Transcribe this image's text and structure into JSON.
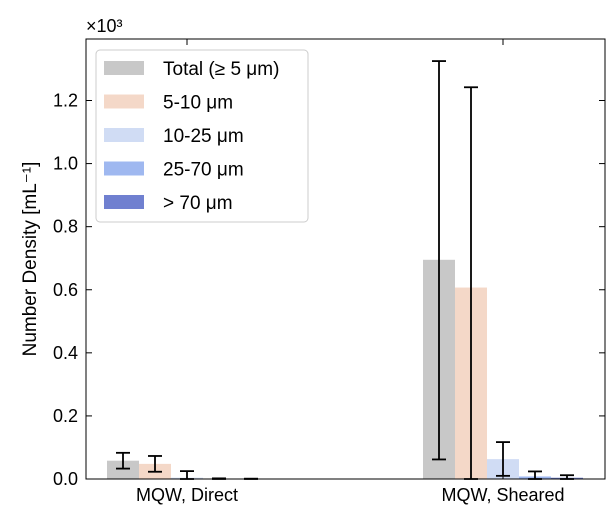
{
  "chart_data": {
    "type": "bar",
    "categories": [
      "MQW, Direct",
      "MQW, Sheared"
    ],
    "series": [
      {
        "name": "Total (≥ 5 μm)",
        "color": "#c8c8c8",
        "values": [
          0.058,
          0.695
        ],
        "err_low": [
          0.033,
          0.062
        ],
        "err_high": [
          0.083,
          1.325
        ]
      },
      {
        "name": "5-10 μm",
        "color": "#f4d8c8",
        "values": [
          0.048,
          0.607
        ],
        "err_low": [
          0.023,
          0.0
        ],
        "err_high": [
          0.073,
          1.242
        ]
      },
      {
        "name": "10-25 μm",
        "color": "#d0dcf4",
        "values": [
          0.004,
          0.063
        ],
        "err_low": [
          0.0,
          0.01
        ],
        "err_high": [
          0.025,
          0.117
        ]
      },
      {
        "name": "25-70 μm",
        "color": "#9fb8f0",
        "values": [
          0.001,
          0.008
        ],
        "err_low": [
          0.0,
          0.0
        ],
        "err_high": [
          0.002,
          0.024
        ]
      },
      {
        "name": "> 70 μm",
        "color": "#7080d0",
        "values": [
          0.0005,
          0.004
        ],
        "err_low": [
          0.0,
          0.0
        ],
        "err_high": [
          0.001,
          0.012
        ]
      }
    ],
    "ylabel": "Number Density [mL⁻¹]",
    "y_multiplier": "×10³",
    "yticks": [
      0.0,
      0.2,
      0.4,
      0.6,
      0.8,
      1.0,
      1.2
    ],
    "ytick_labels": [
      "0.0",
      "0.2",
      "0.4",
      "0.6",
      "0.8",
      "1.0",
      "1.2"
    ],
    "ylim": [
      0,
      1.395
    ],
    "legend_position": "top-left",
    "grid": false
  }
}
